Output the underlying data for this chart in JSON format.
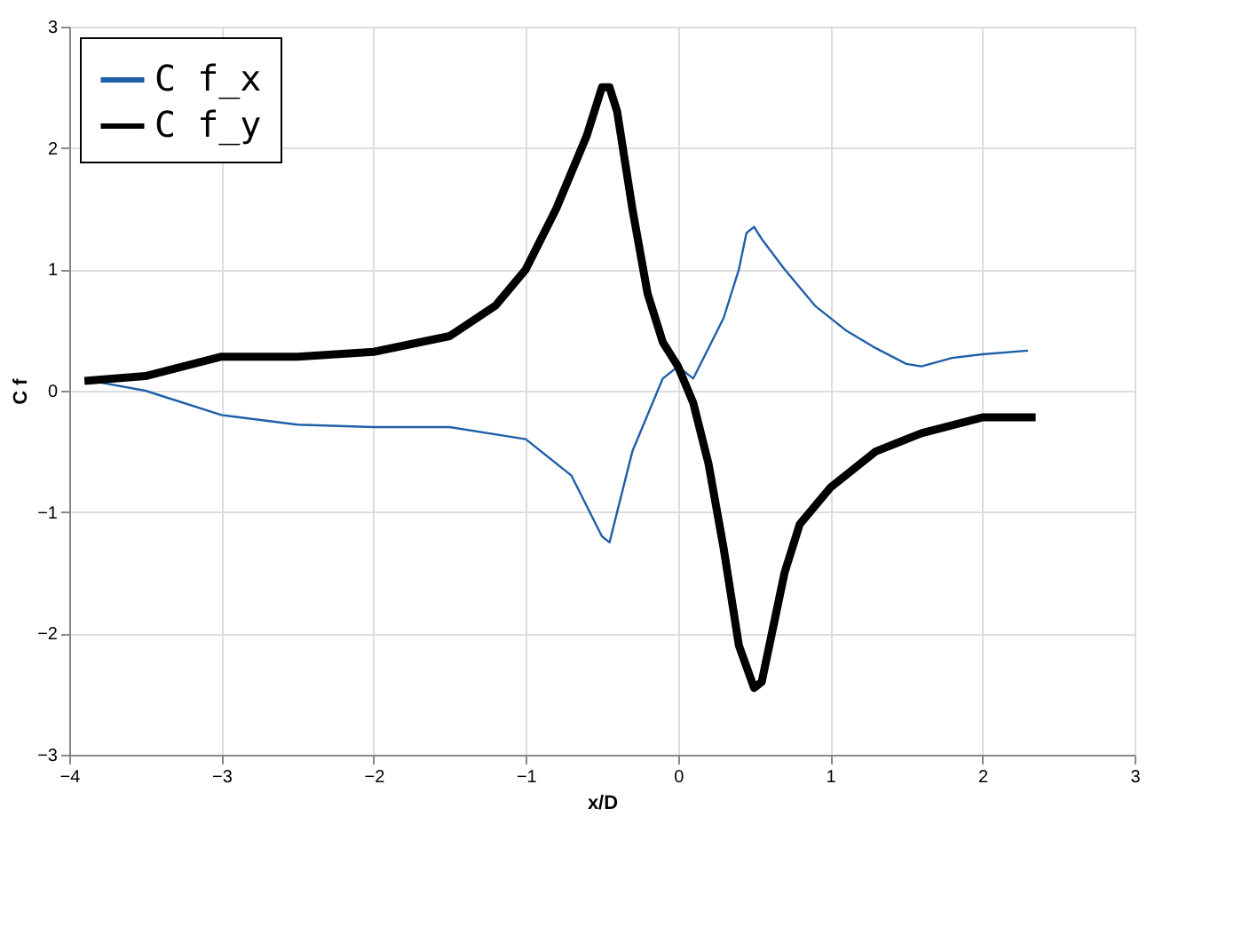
{
  "chart_data": {
    "type": "line",
    "xlabel": "x/D",
    "ylabel": "C f",
    "xlim": [
      -4,
      3
    ],
    "xticks": [
      -4,
      -3,
      -2,
      -1,
      0,
      1,
      2,
      3
    ],
    "ylim": [
      -3,
      3
    ],
    "yticks": [
      -3,
      -2,
      -1,
      0,
      1,
      2,
      3
    ],
    "grid": true,
    "legend": "top left",
    "series": [
      {
        "name": "C f_x",
        "color": "#1f5fa8",
        "x": [
          -3.85,
          -3.5,
          -3,
          -2.5,
          -2,
          -1.5,
          -1,
          -0.7,
          -0.5,
          -0.45,
          -0.4,
          -0.3,
          -0.2,
          -0.1,
          0,
          0.1,
          0.2,
          0.3,
          0.4,
          0.45,
          0.5,
          0.55,
          0.7,
          0.9,
          1.1,
          1.3,
          1.5,
          1.6,
          1.8,
          2,
          2.3
        ],
        "values": [
          0.08,
          0.0,
          -0.2,
          -0.28,
          -0.3,
          -0.3,
          -0.4,
          -0.7,
          -1.2,
          -1.25,
          -1.0,
          -0.5,
          -0.2,
          0.1,
          0.2,
          0.1,
          0.35,
          0.6,
          1.0,
          1.3,
          1.35,
          1.25,
          1.0,
          0.7,
          0.5,
          0.35,
          0.22,
          0.2,
          0.27,
          0.3,
          0.33
        ]
      },
      {
        "name": "C f_y",
        "color": "#000000",
        "x": [
          -3.9,
          -3.5,
          -3,
          -2.5,
          -2,
          -1.5,
          -1.2,
          -1,
          -0.8,
          -0.6,
          -0.5,
          -0.45,
          -0.4,
          -0.3,
          -0.2,
          -0.1,
          0,
          0.1,
          0.2,
          0.3,
          0.4,
          0.5,
          0.55,
          0.6,
          0.7,
          0.8,
          1,
          1.3,
          1.6,
          2,
          2.35
        ],
        "values": [
          0.08,
          0.12,
          0.28,
          0.28,
          0.32,
          0.45,
          0.7,
          1.0,
          1.5,
          2.1,
          2.5,
          2.5,
          2.3,
          1.5,
          0.8,
          0.4,
          0.2,
          -0.1,
          -0.6,
          -1.3,
          -2.1,
          -2.45,
          -2.4,
          -2.1,
          -1.5,
          -1.1,
          -0.8,
          -0.5,
          -0.35,
          -0.22,
          -0.22
        ]
      }
    ]
  }
}
